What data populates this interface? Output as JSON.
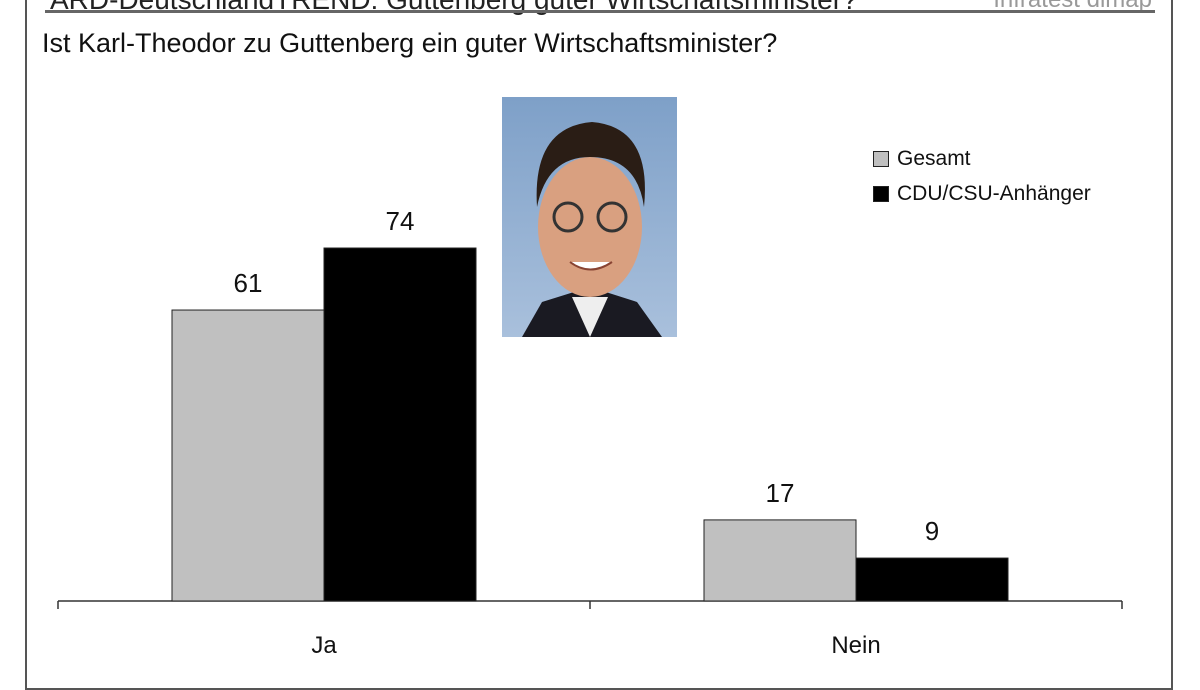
{
  "header": {
    "title": "ARD-DeutschlandTREND: Guttenberg guter Wirtschaftsminister?",
    "source": "Infratest dimap"
  },
  "chart_data": {
    "type": "bar",
    "title": "Ist Karl-Theodor zu Guttenberg ein guter Wirtschaftsminister?",
    "categories": [
      "Ja",
      "Nein"
    ],
    "series": [
      {
        "name": "Gesamt",
        "values": [
          61,
          17
        ],
        "color": "#c0c0c0"
      },
      {
        "name": "CDU/CSU-Anhänger",
        "values": [
          74,
          9
        ],
        "color": "#000000"
      }
    ],
    "ylim": [
      0,
      100
    ],
    "grid": false,
    "legend": "top-right",
    "data_labels": true
  }
}
